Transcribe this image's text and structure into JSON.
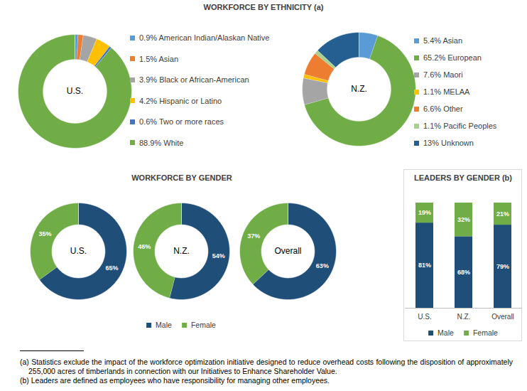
{
  "chart_data": [
    {
      "type": "donut",
      "title": "WORKFORCE BY ETHNICITY (a)",
      "center_label": "U.S.",
      "categories": [
        "0.9% American Indian/Alaskan Native",
        "1.5% Asian",
        "3.9% Black or African-American",
        "4.2% Hispanic or Latino",
        "0.6% Two or more races",
        "88.9% White"
      ],
      "values": [
        0.9,
        1.5,
        3.9,
        4.2,
        0.6,
        88.9
      ],
      "colors": [
        "#5B9BD5",
        "#ED7D31",
        "#A5A5A5",
        "#FFC000",
        "#4472C4",
        "#70AD47"
      ],
      "legend": "right"
    },
    {
      "type": "donut",
      "center_label": "N.Z.",
      "categories": [
        "5.4% Asian",
        "65.2% European",
        "7.6% Maori",
        "1.1% MELAA",
        "6.6% Other",
        "1.1% Pacific Peoples",
        "13% Unknown"
      ],
      "values": [
        5.4,
        65.2,
        7.6,
        1.1,
        6.6,
        1.1,
        13
      ],
      "colors": [
        "#5B9BD5",
        "#70AD47",
        "#A5A5A5",
        "#FFC000",
        "#ED7D31",
        "#A9D18E",
        "#255E91"
      ],
      "legend": "right"
    },
    {
      "type": "donut",
      "title": "WORKFORCE BY GENDER",
      "center_label": "U.S.",
      "categories": [
        "Male",
        "Female"
      ],
      "values": [
        65,
        35
      ],
      "value_labels": [
        "65%",
        "35%"
      ],
      "colors": [
        "#1F4E79",
        "#70AD47"
      ],
      "data_labels": true
    },
    {
      "type": "donut",
      "center_label": "N.Z.",
      "categories": [
        "Male",
        "Female"
      ],
      "values": [
        54,
        46
      ],
      "value_labels": [
        "54%",
        "46%"
      ],
      "colors": [
        "#1F4E79",
        "#70AD47"
      ],
      "data_labels": true
    },
    {
      "type": "donut",
      "center_label": "Overall",
      "categories": [
        "Male",
        "Female"
      ],
      "values": [
        63,
        37
      ],
      "value_labels": [
        "63%",
        "37%"
      ],
      "colors": [
        "#1F4E79",
        "#70AD47"
      ],
      "data_labels": true,
      "legend": "bottom"
    },
    {
      "type": "bar",
      "title": "LEADERS BY GENDER (b)",
      "stacked": true,
      "categories": [
        "U.S.",
        "N.Z.",
        "Overall"
      ],
      "series": [
        {
          "name": "Male",
          "color": "#1F4E79",
          "values": [
            81,
            68,
            79
          ],
          "value_labels": [
            "81%",
            "68%",
            "79%"
          ]
        },
        {
          "name": "Female",
          "color": "#70AD47",
          "values": [
            19,
            32,
            21
          ],
          "value_labels": [
            "19%",
            "32%",
            "21%"
          ]
        }
      ],
      "ylim": [
        0,
        100
      ],
      "tick_labels": "x",
      "data_labels": true,
      "legend": "bottom"
    }
  ],
  "footnotes": [
    "(a) Statistics exclude the impact of the workforce optimization initiative designed to reduce overhead costs following the disposition of approximately 255,000 acres of timberlands in connection with our Initiatives to Enhance Shareholder Value.",
    "(b) Leaders are defined as employees who have responsibility for managing other employees."
  ]
}
